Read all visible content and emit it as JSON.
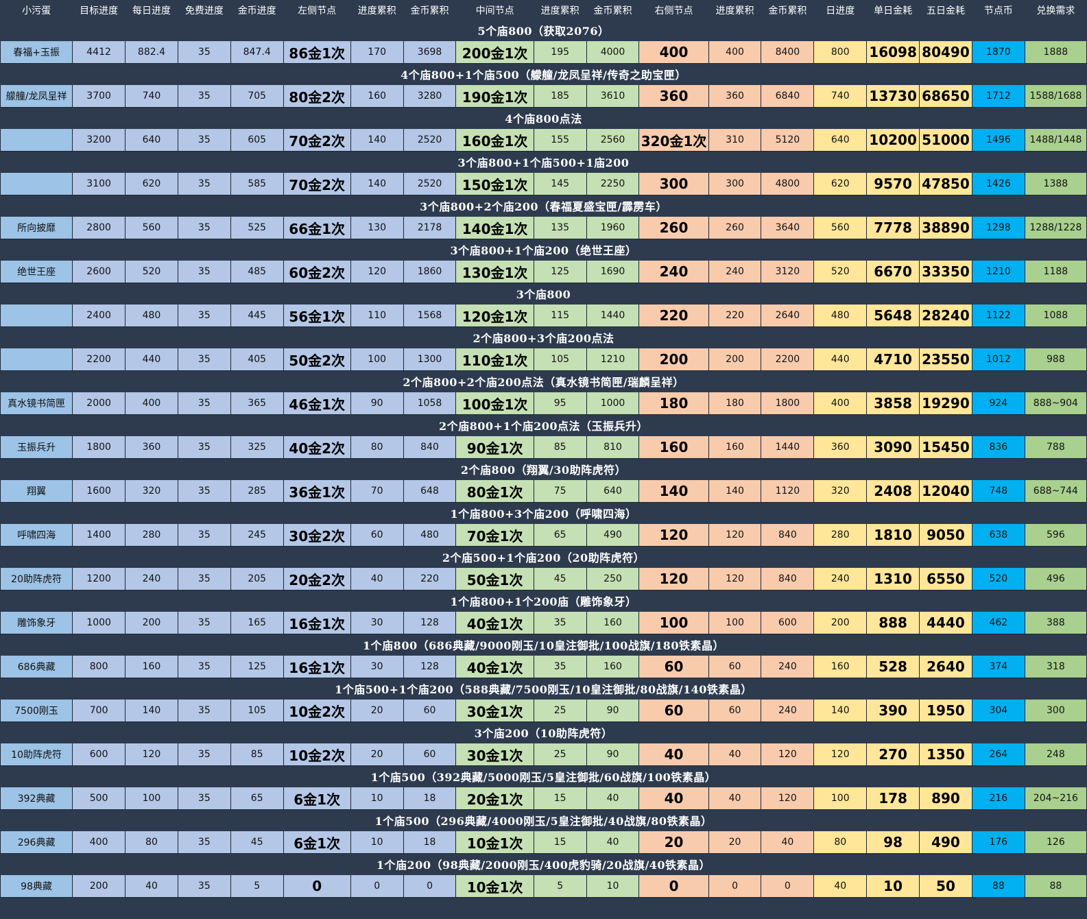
{
  "header": [
    "小污蛋",
    "目标进度",
    "每日进度",
    "免费进度",
    "金币进度",
    "左侧节点",
    "进度累积",
    "金币累积",
    "中间节点",
    "进度累积",
    "金币累积",
    "右侧节点",
    "进度累积",
    "金币累积",
    "日进度",
    "单日金耗",
    "五日金耗",
    "节点币",
    "兑换需求"
  ],
  "colors": {
    "background": "#2e3b4e",
    "name": "#9dc3e6",
    "progress_cols": "#b4c7e7",
    "middle": "#c5e0b4",
    "right": "#f8cbad",
    "daily": "#ffe699",
    "node_coin": "#00b0f0",
    "exchange": "#a9d08e"
  },
  "sections": [
    {
      "title": "5个庙800（获取2076）",
      "row": [
        "春福+玉振",
        "4412",
        "882.4",
        "35",
        "847.4",
        "86金1次",
        "170",
        "3698",
        "200金1次",
        "195",
        "4000",
        "400",
        "400",
        "8400",
        "800",
        "16098",
        "80490",
        "1870",
        "1888"
      ]
    },
    {
      "title": "4个庙800+1个庙500（艨艟/龙凤呈祥/传奇之助宝匣）",
      "row": [
        "艨艟/龙凤呈祥",
        "3700",
        "740",
        "35",
        "705",
        "80金2次",
        "160",
        "3280",
        "190金1次",
        "185",
        "3610",
        "360",
        "360",
        "6840",
        "740",
        "13730",
        "68650",
        "1712",
        "1588/1688"
      ]
    },
    {
      "title": "4个庙800点法",
      "row": [
        "",
        "3200",
        "640",
        "35",
        "605",
        "70金2次",
        "140",
        "2520",
        "160金1次",
        "155",
        "2560",
        "320金1次",
        "310",
        "5120",
        "640",
        "10200",
        "51000",
        "1496",
        "1488/1448"
      ]
    },
    {
      "title": "3个庙800+1个庙500+1庙200",
      "row": [
        "",
        "3100",
        "620",
        "35",
        "585",
        "70金2次",
        "140",
        "2520",
        "150金1次",
        "145",
        "2250",
        "300",
        "300",
        "4800",
        "620",
        "9570",
        "47850",
        "1426",
        "1388"
      ]
    },
    {
      "title": "3个庙800+2个庙200（春福夏盛宝匣/霹雳车）",
      "row": [
        "所向披靡",
        "2800",
        "560",
        "35",
        "525",
        "66金1次",
        "130",
        "2178",
        "140金1次",
        "135",
        "1960",
        "260",
        "260",
        "3640",
        "560",
        "7778",
        "38890",
        "1298",
        "1288/1228"
      ]
    },
    {
      "title": "3个庙800+1个庙200（绝世王座）",
      "row": [
        "绝世王座",
        "2600",
        "520",
        "35",
        "485",
        "60金2次",
        "120",
        "1860",
        "130金1次",
        "125",
        "1690",
        "240",
        "240",
        "3120",
        "520",
        "6670",
        "33350",
        "1210",
        "1188"
      ]
    },
    {
      "title": "3个庙800",
      "row": [
        "",
        "2400",
        "480",
        "35",
        "445",
        "56金1次",
        "110",
        "1568",
        "120金1次",
        "115",
        "1440",
        "220",
        "220",
        "2640",
        "480",
        "5648",
        "28240",
        "1122",
        "1088"
      ]
    },
    {
      "title": "2个庙800+3个庙200点法",
      "row": [
        "",
        "2200",
        "440",
        "35",
        "405",
        "50金2次",
        "100",
        "1300",
        "110金1次",
        "105",
        "1210",
        "200",
        "200",
        "2200",
        "440",
        "4710",
        "23550",
        "1012",
        "988"
      ]
    },
    {
      "title": "2个庙800+2个庙200点法（真水镜书简匣/瑞麟呈祥）",
      "row": [
        "真水镜书简匣",
        "2000",
        "400",
        "35",
        "365",
        "46金1次",
        "90",
        "1058",
        "100金1次",
        "95",
        "1000",
        "180",
        "180",
        "1800",
        "400",
        "3858",
        "19290",
        "924",
        "888~904"
      ]
    },
    {
      "title": "2个庙800+1个庙200点法（玉振兵升）",
      "row": [
        "玉振兵升",
        "1800",
        "360",
        "35",
        "325",
        "40金2次",
        "80",
        "840",
        "90金1次",
        "85",
        "810",
        "160",
        "160",
        "1440",
        "360",
        "3090",
        "15450",
        "836",
        "788"
      ]
    },
    {
      "title": "2个庙800（翔翼/30助阵虎符）",
      "row": [
        "翔翼",
        "1600",
        "320",
        "35",
        "285",
        "36金1次",
        "70",
        "648",
        "80金1次",
        "75",
        "640",
        "140",
        "140",
        "1120",
        "320",
        "2408",
        "12040",
        "748",
        "688~744"
      ]
    },
    {
      "title": "1个庙800+3个庙200（呼啸四海）",
      "row": [
        "呼啸四海",
        "1400",
        "280",
        "35",
        "245",
        "30金2次",
        "60",
        "480",
        "70金1次",
        "65",
        "490",
        "120",
        "120",
        "840",
        "280",
        "1810",
        "9050",
        "638",
        "596"
      ]
    },
    {
      "title": "2个庙500+1个庙200（20助阵虎符）",
      "row": [
        "20助阵虎符",
        "1200",
        "240",
        "35",
        "205",
        "20金2次",
        "40",
        "220",
        "50金1次",
        "45",
        "250",
        "120",
        "120",
        "840",
        "240",
        "1310",
        "6550",
        "520",
        "496"
      ]
    },
    {
      "title": "1个庙800+1个200庙（雕饰象牙）",
      "row": [
        "雕饰象牙",
        "1000",
        "200",
        "35",
        "165",
        "16金1次",
        "30",
        "128",
        "40金1次",
        "35",
        "160",
        "100",
        "100",
        "600",
        "200",
        "888",
        "4440",
        "462",
        "388"
      ]
    },
    {
      "title": "1个庙800（686典藏/9000刚玉/10皇注御批/100战旗/180铁素晶）",
      "row": [
        "686典藏",
        "800",
        "160",
        "35",
        "125",
        "16金1次",
        "30",
        "128",
        "40金1次",
        "35",
        "160",
        "60",
        "60",
        "240",
        "160",
        "528",
        "2640",
        "374",
        "318"
      ]
    },
    {
      "title": "1个庙500+1个庙200（588典藏/7500刚玉/10皇注御批/80战旗/140铁素晶）",
      "row": [
        "7500刚玉",
        "700",
        "140",
        "35",
        "105",
        "10金2次",
        "20",
        "60",
        "30金1次",
        "25",
        "90",
        "60",
        "60",
        "240",
        "140",
        "390",
        "1950",
        "304",
        "300"
      ]
    },
    {
      "title": "3个庙200（10助阵虎符）",
      "row": [
        "10助阵虎符",
        "600",
        "120",
        "35",
        "85",
        "10金2次",
        "20",
        "60",
        "30金1次",
        "25",
        "90",
        "40",
        "40",
        "120",
        "120",
        "270",
        "1350",
        "264",
        "248"
      ]
    },
    {
      "title": "1个庙500（392典藏/5000刚玉/5皇注御批/60战旗/100铁素晶）",
      "row": [
        "392典藏",
        "500",
        "100",
        "35",
        "65",
        "6金1次",
        "10",
        "18",
        "20金1次",
        "15",
        "40",
        "40",
        "40",
        "120",
        "100",
        "178",
        "890",
        "216",
        "204~216"
      ]
    },
    {
      "title": "1个庙500（296典藏/4000刚玉/5皇注御批/40战旗/80铁素晶）",
      "row": [
        "296典藏",
        "400",
        "80",
        "35",
        "45",
        "6金1次",
        "10",
        "18",
        "10金1次",
        "15",
        "40",
        "20",
        "20",
        "40",
        "80",
        "98",
        "490",
        "176",
        "126"
      ]
    },
    {
      "title": "1个庙200（98典藏/2000刚玉/400虎豹骑/20战旗/40铁素晶）",
      "row": [
        "98典藏",
        "200",
        "40",
        "35",
        "5",
        "0",
        "0",
        "0",
        "10金1次",
        "5",
        "10",
        "0",
        "0",
        "0",
        "40",
        "10",
        "50",
        "88",
        "88"
      ]
    }
  ]
}
